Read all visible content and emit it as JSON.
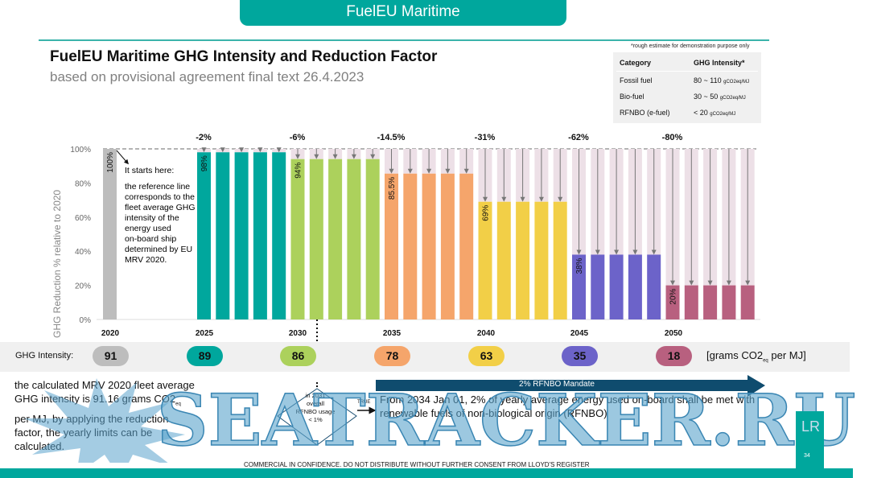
{
  "header": {
    "tab_title": "FuelEU Maritime",
    "title": "FuelEU Maritime GHG Intensity and Reduction Factor",
    "subtitle": "based on provisional agreement final text 26.4.2023"
  },
  "fuel_table": {
    "note": "*rough estimate for demonstration purpose only",
    "headers": [
      "Category",
      "GHG Intensity*"
    ],
    "rows": [
      {
        "category": "Fossil fuel",
        "value": "80 ~ 110",
        "unit": "gCO2eq/MJ"
      },
      {
        "category": "Bio-fuel",
        "value": "30 ~ 50",
        "unit": "gCO2eq/MJ"
      },
      {
        "category": "RFNBO (e-fuel)",
        "value": "< 20",
        "unit": "gCO2eq/MJ"
      }
    ]
  },
  "chart_data": {
    "type": "bar",
    "title": "FuelEU Maritime GHG Intensity and Reduction Factor",
    "ylabel": "GHG Reduction % relative to 2020",
    "xlabel": "",
    "ylim": [
      0,
      100
    ],
    "yticks": [
      "0%",
      "20%",
      "40%",
      "60%",
      "80%",
      "100%"
    ],
    "ytick_values": [
      0,
      20,
      40,
      60,
      80,
      100
    ],
    "xtick_labels": [
      "2020",
      "2025",
      "2030",
      "2035",
      "2040",
      "2045",
      "2050"
    ],
    "reference_line": 100,
    "baseline": {
      "year": "2020",
      "value": 100,
      "label": "100%",
      "color": "#bdbdbd"
    },
    "series": [
      {
        "name": "2025-2029",
        "reduction_label": "-2%",
        "value": 98,
        "bar_label": "98%",
        "count": 5,
        "color": "#00a79d"
      },
      {
        "name": "2030-2034",
        "reduction_label": "-6%",
        "value": 94,
        "bar_label": "94%",
        "count": 5,
        "color": "#acd15c"
      },
      {
        "name": "2035-2039",
        "reduction_label": "-14.5%",
        "value": 85.5,
        "bar_label": "85.5%",
        "count": 5,
        "color": "#f5a56b"
      },
      {
        "name": "2040-2044",
        "reduction_label": "-31%",
        "value": 69,
        "bar_label": "69%",
        "count": 5,
        "color": "#f2cf47"
      },
      {
        "name": "2045-2049",
        "reduction_label": "-62%",
        "value": 38,
        "bar_label": "38%",
        "count": 5,
        "color": "#6c63c9"
      },
      {
        "name": "2050+",
        "reduction_label": "-80%",
        "value": 20,
        "bar_label": "20%",
        "count": 5,
        "color": "#b8607f"
      }
    ],
    "gap_color": "#ede0e7",
    "annotation": {
      "heading": "It starts here:",
      "body": "the reference line corresponds to the fleet average GHG intensity of the energy used on-board ship determined by EU MRV 2020."
    }
  },
  "intensity": {
    "label": "GHG Intensity:",
    "values": [
      {
        "year": "2020",
        "value": "91",
        "color": "#bdbdbd"
      },
      {
        "year": "2025",
        "value": "89",
        "color": "#00a79d"
      },
      {
        "year": "2030",
        "value": "86",
        "color": "#acd15c"
      },
      {
        "year": "2035",
        "value": "78",
        "color": "#f5a56b"
      },
      {
        "year": "2040",
        "value": "63",
        "color": "#f2cf47"
      },
      {
        "year": "2045",
        "value": "35",
        "color": "#6c63c9"
      },
      {
        "year": "2050",
        "value": "18",
        "color": "#b8607f"
      }
    ],
    "units_prefix": "[grams CO2",
    "units_sub": "eq",
    "units_suffix": " per MJ]"
  },
  "mrv_text": {
    "part1": "the calculated MRV 2020 fleet average GHG intensity is 91.16 grams CO2",
    "sub": "eq",
    "part2": " per MJ, by applying the reduction factor, the yearly limits can be calculated."
  },
  "decision": {
    "line1": "in 2031",
    "line2": "overall",
    "line3": "RFNBO usage",
    "line4": "< 1%",
    "true_label": "TRUE"
  },
  "mandate": {
    "label": "2% RFNBO Mandate",
    "text": "From 2034 Jan 01, 2% of yearly average energy used on-board shall be met with renewable fuels of non-biological origin (RFNBO)",
    "color": "#0f4c6e"
  },
  "footer": {
    "confidential": "COMMERCIAL IN CONFIDENCE. DO NOT DISTRIBUTE WITHOUT FURTHER CONSENT FROM LLOYD'S REGISTER",
    "page_number": "34",
    "logo": "LR"
  },
  "watermark": {
    "text": "SEATRACKER.RU"
  }
}
